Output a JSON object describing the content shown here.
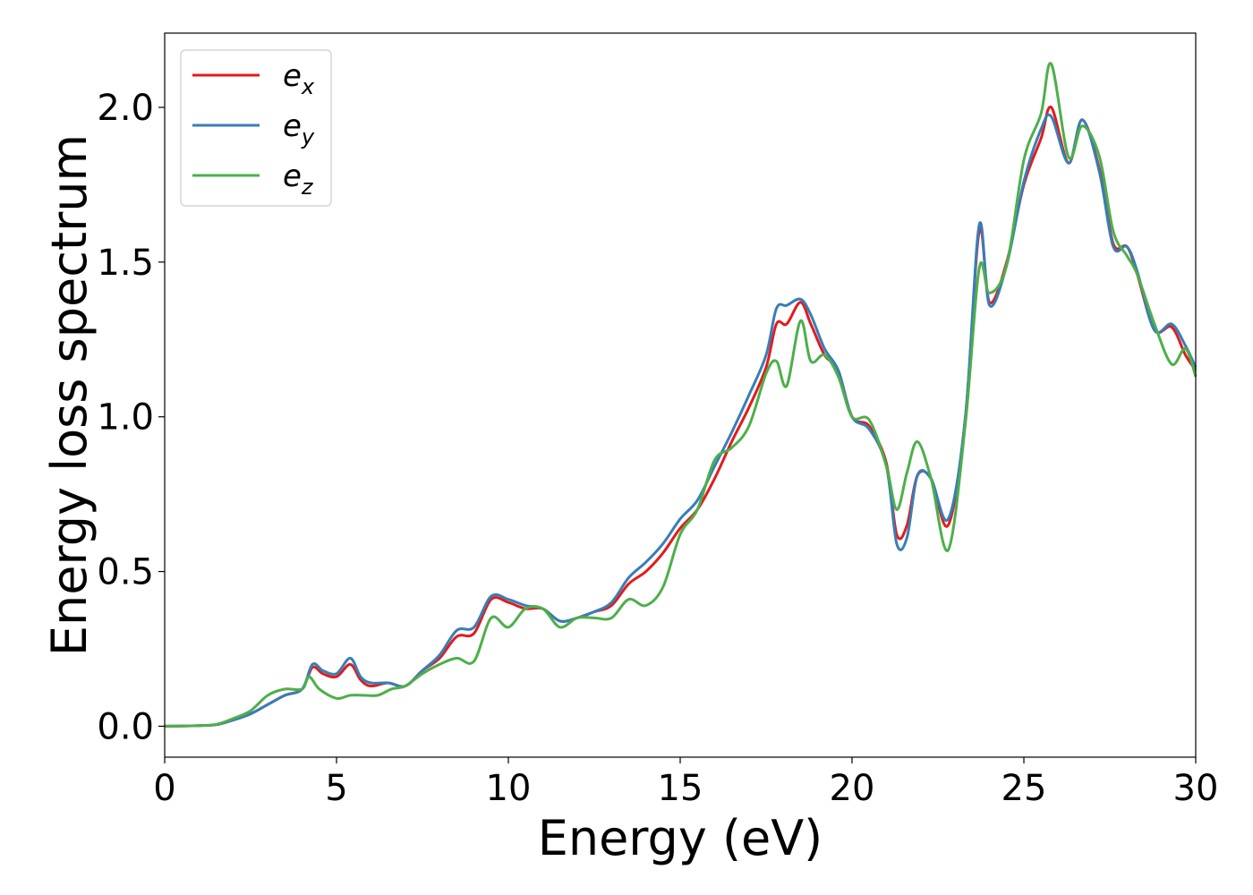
{
  "chart_data": {
    "type": "line",
    "title": "",
    "xlabel": "Energy (eV)",
    "ylabel": "Energy loss spectrum",
    "xlim": [
      0,
      30
    ],
    "ylim": [
      -0.1,
      2.24
    ],
    "xticks": [
      "0",
      "5",
      "10",
      "15",
      "20",
      "25",
      "30"
    ],
    "yticks": [
      "0.0",
      "0.5",
      "1.0",
      "1.5",
      "2.0"
    ],
    "grid": false,
    "legend_position": "top-left",
    "series": [
      {
        "name": "e",
        "subscript": "x",
        "color": "#e41a1c",
        "x": [
          0,
          1,
          1.5,
          2,
          2.5,
          3,
          3.5,
          4,
          4.3,
          4.6,
          5,
          5.4,
          5.7,
          6,
          6.5,
          7,
          7.5,
          8,
          8.5,
          9,
          9.5,
          10,
          10.5,
          11,
          11.5,
          12,
          12.5,
          13,
          13.5,
          14,
          14.5,
          15,
          15.5,
          16,
          16.5,
          17,
          17.5,
          17.8,
          18.1,
          18.5,
          18.8,
          19.2,
          19.6,
          20,
          20.5,
          21,
          21.3,
          21.6,
          21.9,
          22.3,
          22.8,
          23.3,
          23.7,
          24,
          24.5,
          25,
          25.5,
          25.8,
          26.3,
          26.7,
          27.2,
          27.6,
          28,
          28.3,
          28.8,
          29.3,
          29.7,
          30
        ],
        "y": [
          0,
          0.002,
          0.005,
          0.02,
          0.04,
          0.07,
          0.1,
          0.12,
          0.19,
          0.17,
          0.16,
          0.2,
          0.15,
          0.13,
          0.14,
          0.13,
          0.18,
          0.22,
          0.29,
          0.3,
          0.41,
          0.4,
          0.38,
          0.38,
          0.34,
          0.35,
          0.37,
          0.39,
          0.46,
          0.5,
          0.56,
          0.64,
          0.7,
          0.8,
          0.92,
          1.03,
          1.16,
          1.3,
          1.3,
          1.37,
          1.3,
          1.2,
          1.15,
          1.0,
          0.97,
          0.85,
          0.62,
          0.65,
          0.81,
          0.8,
          0.65,
          1.0,
          1.6,
          1.37,
          1.5,
          1.75,
          1.9,
          2.0,
          1.82,
          1.96,
          1.8,
          1.56,
          1.55,
          1.46,
          1.28,
          1.29,
          1.2,
          1.15
        ]
      },
      {
        "name": "e",
        "subscript": "y",
        "color": "#377eb8",
        "x": [
          0,
          1,
          1.5,
          2,
          2.5,
          3,
          3.5,
          4,
          4.3,
          4.6,
          5,
          5.4,
          5.7,
          6,
          6.5,
          7,
          7.5,
          8,
          8.5,
          9,
          9.5,
          10,
          10.5,
          11,
          11.5,
          12,
          12.5,
          13,
          13.5,
          14,
          14.5,
          15,
          15.5,
          16,
          16.5,
          17,
          17.5,
          17.8,
          18.1,
          18.5,
          18.8,
          19.2,
          19.6,
          20,
          20.5,
          21,
          21.3,
          21.6,
          21.9,
          22.3,
          22.8,
          23.3,
          23.7,
          24,
          24.5,
          25,
          25.5,
          25.8,
          26.3,
          26.7,
          27.2,
          27.6,
          28,
          28.3,
          28.8,
          29.3,
          29.7,
          30
        ],
        "y": [
          0,
          0.002,
          0.005,
          0.02,
          0.04,
          0.07,
          0.1,
          0.12,
          0.2,
          0.18,
          0.17,
          0.22,
          0.16,
          0.14,
          0.14,
          0.13,
          0.18,
          0.23,
          0.31,
          0.32,
          0.42,
          0.41,
          0.39,
          0.38,
          0.34,
          0.35,
          0.37,
          0.4,
          0.48,
          0.53,
          0.59,
          0.67,
          0.73,
          0.84,
          0.95,
          1.07,
          1.2,
          1.35,
          1.36,
          1.38,
          1.33,
          1.22,
          1.15,
          1.0,
          0.96,
          0.84,
          0.59,
          0.61,
          0.81,
          0.8,
          0.67,
          1.0,
          1.62,
          1.36,
          1.49,
          1.76,
          1.93,
          1.97,
          1.82,
          1.96,
          1.79,
          1.55,
          1.55,
          1.47,
          1.28,
          1.3,
          1.23,
          1.16
        ]
      },
      {
        "name": "e",
        "subscript": "z",
        "color": "#4daf4a",
        "x": [
          0,
          1,
          1.5,
          2,
          2.5,
          3,
          3.5,
          4,
          4.2,
          4.5,
          5,
          5.4,
          5.8,
          6.2,
          6.6,
          7,
          7.5,
          8,
          8.5,
          9,
          9.5,
          10,
          10.5,
          11,
          11.5,
          12,
          12.5,
          13,
          13.5,
          14,
          14.5,
          15,
          15.5,
          16,
          16.5,
          17,
          17.5,
          17.8,
          18.1,
          18.5,
          18.8,
          19.2,
          19.6,
          20,
          20.5,
          21,
          21.3,
          21.6,
          21.9,
          22.3,
          22.8,
          23.3,
          23.7,
          24,
          24.5,
          25,
          25.5,
          25.8,
          26.3,
          26.7,
          27.2,
          27.6,
          28,
          28.3,
          28.8,
          29.3,
          29.7,
          30
        ],
        "y": [
          0,
          0.002,
          0.006,
          0.025,
          0.05,
          0.1,
          0.12,
          0.12,
          0.16,
          0.12,
          0.09,
          0.1,
          0.1,
          0.1,
          0.12,
          0.13,
          0.17,
          0.2,
          0.22,
          0.21,
          0.35,
          0.32,
          0.38,
          0.38,
          0.32,
          0.35,
          0.35,
          0.35,
          0.41,
          0.39,
          0.45,
          0.62,
          0.7,
          0.86,
          0.9,
          0.97,
          1.14,
          1.18,
          1.1,
          1.31,
          1.18,
          1.2,
          1.13,
          1.0,
          0.99,
          0.84,
          0.7,
          0.82,
          0.92,
          0.8,
          0.57,
          0.98,
          1.48,
          1.4,
          1.49,
          1.83,
          1.98,
          2.14,
          1.84,
          1.94,
          1.84,
          1.6,
          1.52,
          1.46,
          1.3,
          1.17,
          1.22,
          1.13
        ]
      }
    ]
  }
}
